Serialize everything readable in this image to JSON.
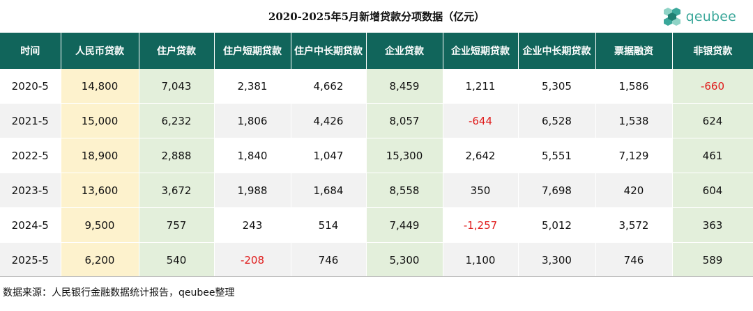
{
  "title": "2020-2025年5月新增贷款分项数据（亿元）",
  "logo": {
    "text": "qeubee",
    "icon": "cube-cluster-logo-icon",
    "color": "#3aa79a"
  },
  "colors": {
    "header_bg": "#11655b",
    "rmb_column_bg": "#fdf2cd",
    "highlight_column_bg": "#e3efdb",
    "negative_text": "#e01b1b"
  },
  "chart_data": {
    "type": "table",
    "columns": [
      "时间",
      "人民币贷款",
      "住户贷款",
      "住户短期贷款",
      "住户中长期贷款",
      "企业贷款",
      "企业短期贷款",
      "企业中长期贷款",
      "票据融资",
      "非银贷款"
    ],
    "rows": [
      [
        "2020-5",
        "14,800",
        "7,043",
        "2,381",
        "4,662",
        "8,459",
        "1,211",
        "5,305",
        "1,586",
        "-660"
      ],
      [
        "2021-5",
        "15,000",
        "6,232",
        "1,806",
        "4,426",
        "8,057",
        "-644",
        "6,528",
        "1,538",
        "624"
      ],
      [
        "2022-5",
        "18,900",
        "2,888",
        "1,840",
        "1,047",
        "15,300",
        "2,642",
        "5,551",
        "7,129",
        "461"
      ],
      [
        "2023-5",
        "13,600",
        "3,672",
        "1,988",
        "1,684",
        "8,558",
        "350",
        "7,698",
        "420",
        "604"
      ],
      [
        "2024-5",
        "9,500",
        "757",
        "243",
        "514",
        "7,449",
        "-1,257",
        "5,012",
        "3,572",
        "363"
      ],
      [
        "2025-5",
        "6,200",
        "540",
        "-208",
        "746",
        "5,300",
        "1,100",
        "3,300",
        "746",
        "589"
      ]
    ]
  },
  "source": "数据来源：人民银行金融数据统计报告，qeubee整理"
}
